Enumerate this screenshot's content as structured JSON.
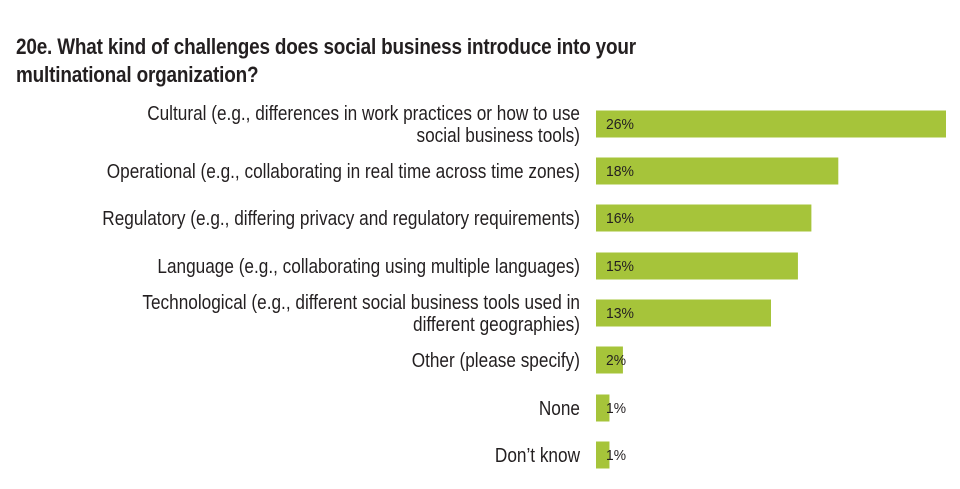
{
  "chart_data": {
    "type": "bar",
    "orientation": "horizontal",
    "title": "20e. What kind of challenges does social business introduce into your multinational organization?",
    "categories": [
      "Cultural (e.g., differences in work practices or how to use social business tools)",
      "Operational (e.g., collaborating in real time across time zones)",
      "Regulatory (e.g., differing privacy and regulatory requirements)",
      "Language (e.g., collaborating using multiple languages)",
      "Technological (e.g., different social business tools used in different geographies)",
      "Other (please specify)",
      "None",
      "Don’t know"
    ],
    "category_lines": [
      [
        "Cultural (e.g., differences in work practices or how to use",
        "social business tools)"
      ],
      [
        "Operational (e.g., collaborating in real time across time zones)"
      ],
      [
        "Regulatory (e.g., differing privacy and regulatory requirements)"
      ],
      [
        "Language (e.g., collaborating using multiple languages)"
      ],
      [
        "Technological (e.g., different social business tools used in",
        "different geographies)"
      ],
      [
        "Other (please specify)"
      ],
      [
        "None"
      ],
      [
        "Don’t know"
      ]
    ],
    "values": [
      26,
      18,
      16,
      15,
      13,
      2,
      1,
      1
    ],
    "value_labels": [
      "26%",
      "18%",
      "16%",
      "15%",
      "13%",
      "2%",
      "1%",
      "1%"
    ],
    "xlim": [
      0,
      26
    ],
    "unit": "%",
    "grid": false,
    "legend": "none",
    "colors": {
      "bar": "#a6c43a",
      "text": "#231f20"
    }
  }
}
